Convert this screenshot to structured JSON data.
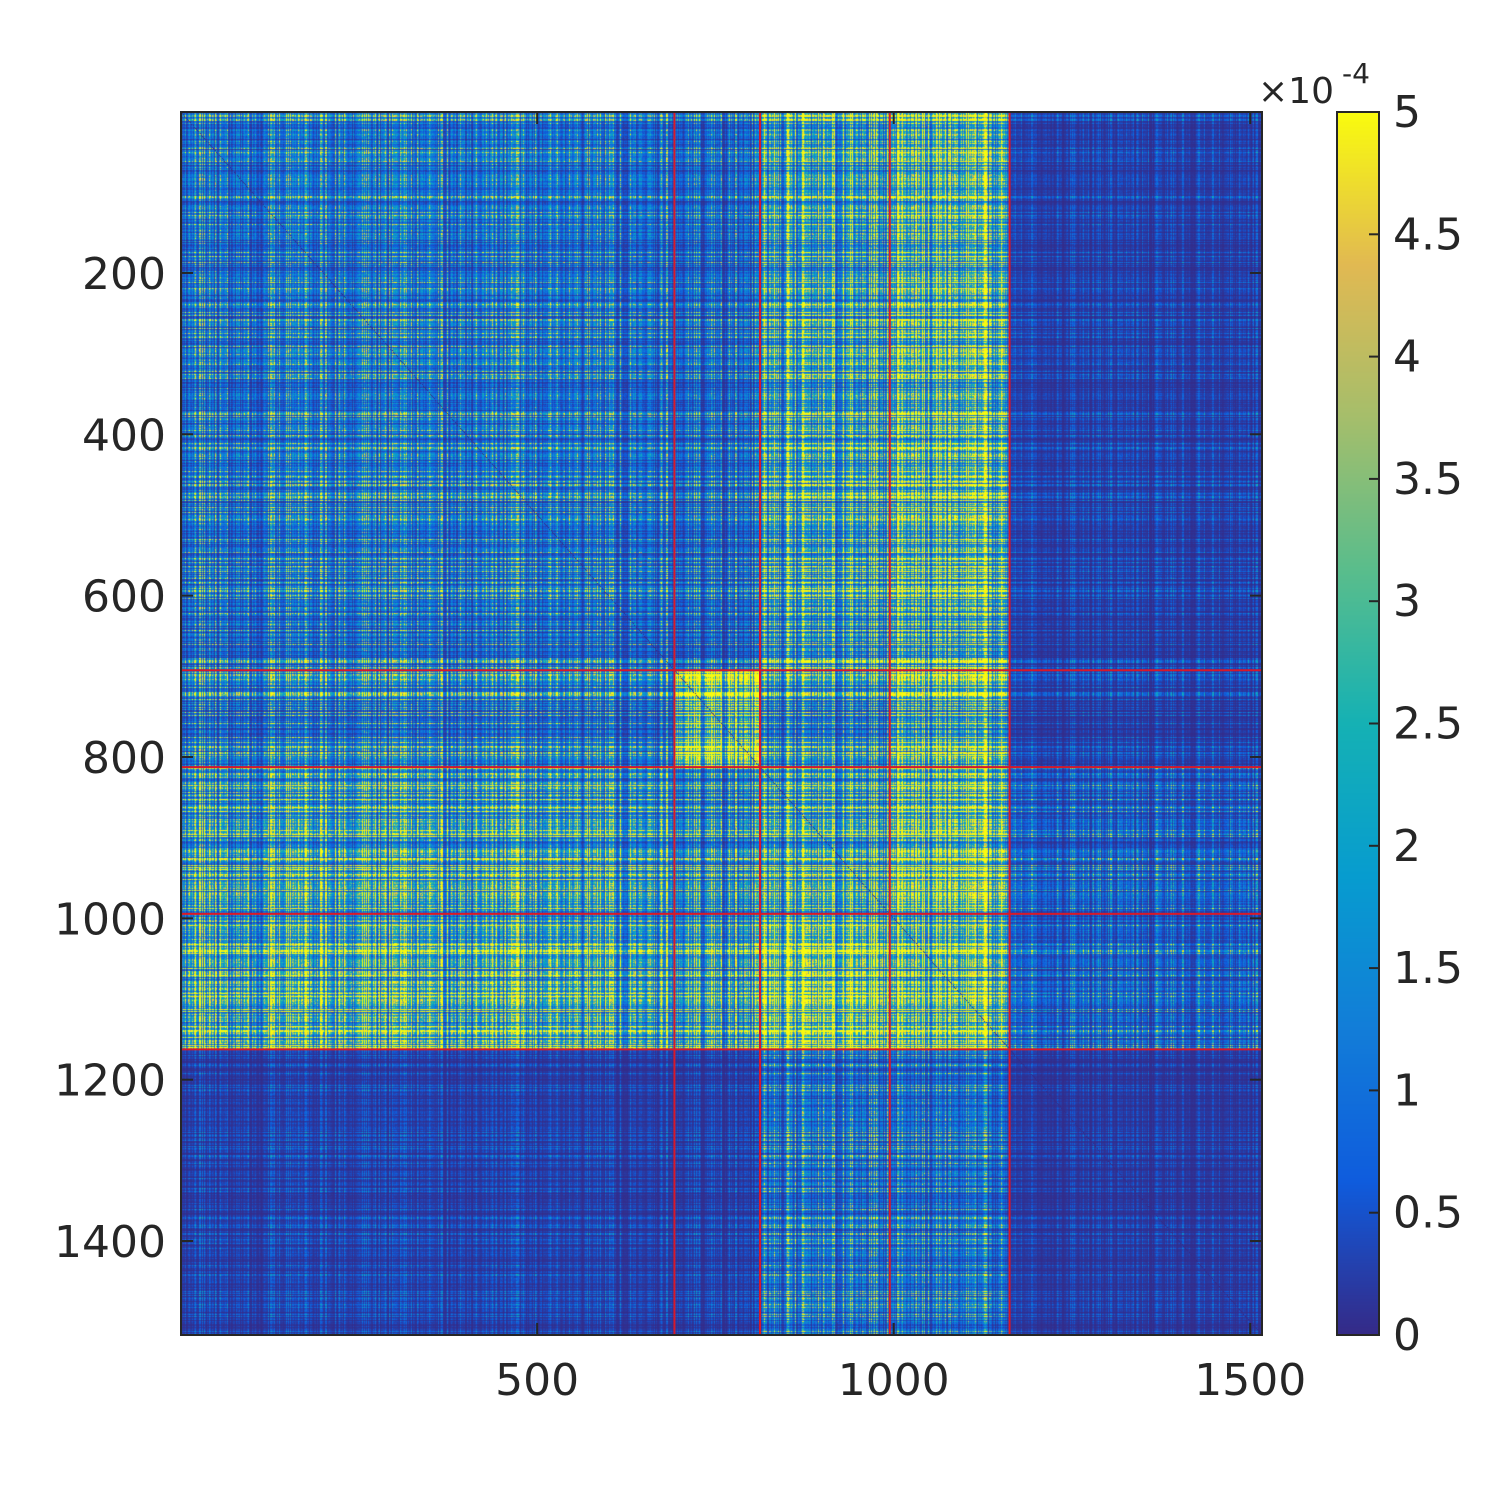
{
  "chart_data": {
    "type": "heatmap",
    "title": "",
    "xlabel": "",
    "ylabel": "",
    "n": 1516,
    "xlim": [
      0.5,
      1516.5
    ],
    "ylim": [
      0.5,
      1516.5
    ],
    "y_direction": "reverse",
    "xticks": [
      500,
      1000,
      1500
    ],
    "xtick_labels": [
      "500",
      "1000",
      "1500"
    ],
    "yticks": [
      200,
      400,
      600,
      800,
      1000,
      1200,
      1400
    ],
    "ytick_labels": [
      "200",
      "400",
      "600",
      "800",
      "1000",
      "1200",
      "1400"
    ],
    "group_boundaries": [
      692,
      812,
      994,
      1162
    ],
    "group_boundary_color": "#d7182a",
    "block_mean_values_e4": [
      [
        1.2,
        1.0,
        2.5,
        3.0,
        0.3
      ],
      [
        1.3,
        4.5,
        1.8,
        3.0,
        0.3
      ],
      [
        2.5,
        2.0,
        3.0,
        4.0,
        0.8
      ],
      [
        2.8,
        2.5,
        4.5,
        3.5,
        0.8
      ],
      [
        0.3,
        0.3,
        1.2,
        1.0,
        0.2
      ]
    ],
    "colormap": "parula",
    "colorbar": {
      "clim": [
        0,
        0.0005
      ],
      "multiplier_label": "×10",
      "multiplier_exponent": "-4",
      "ticks": [
        0,
        0.5,
        1,
        1.5,
        2,
        2.5,
        3,
        3.5,
        4,
        4.5,
        5
      ],
      "tick_labels": [
        "0",
        "0.5",
        "1",
        "1.5",
        "2",
        "2.5",
        "3",
        "3.5",
        "4",
        "4.5",
        "5"
      ],
      "location": "right"
    }
  }
}
